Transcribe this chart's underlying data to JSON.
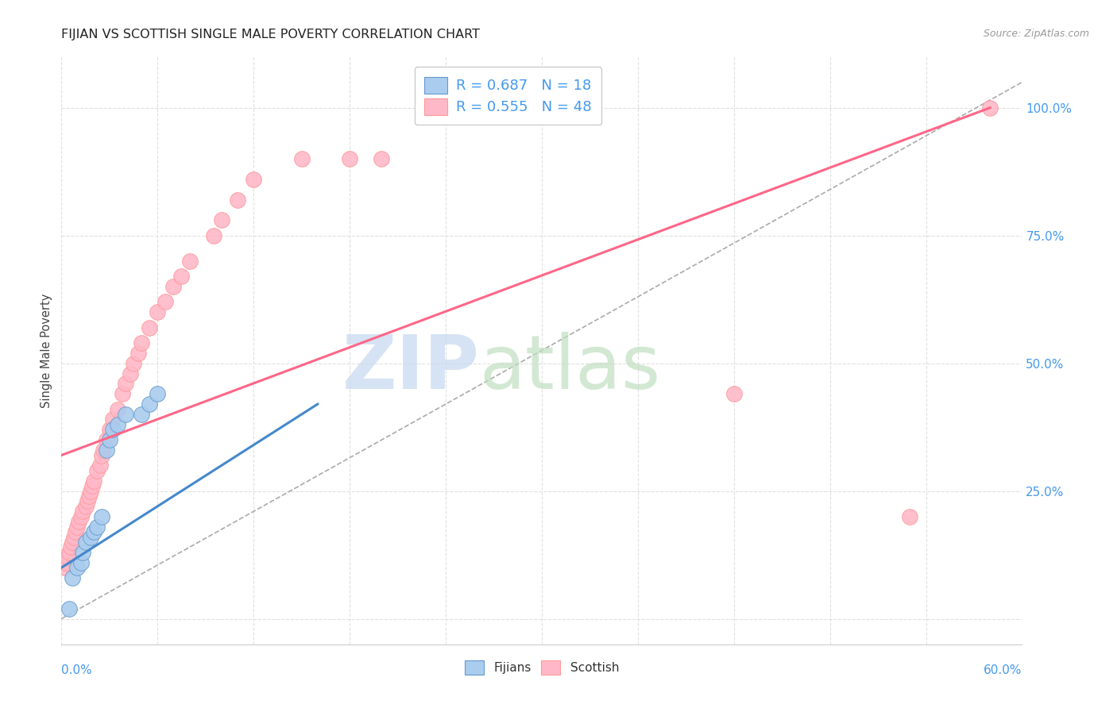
{
  "title": "FIJIAN VS SCOTTISH SINGLE MALE POVERTY CORRELATION CHART",
  "source": "Source: ZipAtlas.com",
  "ylabel": "Single Male Poverty",
  "yticks": [
    0.0,
    0.25,
    0.5,
    0.75,
    1.0
  ],
  "ytick_labels": [
    "",
    "25.0%",
    "50.0%",
    "75.0%",
    "100.0%"
  ],
  "xlim": [
    0.0,
    0.6
  ],
  "ylim": [
    -0.05,
    1.1
  ],
  "fijian_color": "#AACCEE",
  "fijian_edge": "#6699CC",
  "scottish_color": "#FFB8C8",
  "scottish_edge": "#FF9999",
  "fijian_line_color": "#4488CC",
  "scottish_line_color": "#FF6688",
  "dash_line_color": "#AAAAAA",
  "fijian_R": 0.687,
  "fijian_N": 18,
  "scottish_R": 0.555,
  "scottish_N": 48,
  "legend_color": "#4499EE",
  "watermark_zip_color": "#C5D8F0",
  "watermark_atlas_color": "#C0DFC0",
  "background": "#FFFFFF",
  "grid_color": "#E0E0E0",
  "fijian_x": [
    0.005,
    0.007,
    0.01,
    0.012,
    0.013,
    0.015,
    0.018,
    0.02,
    0.022,
    0.025,
    0.028,
    0.03,
    0.032,
    0.035,
    0.04,
    0.05,
    0.055,
    0.06
  ],
  "fijian_y": [
    0.02,
    0.08,
    0.1,
    0.11,
    0.13,
    0.15,
    0.16,
    0.17,
    0.18,
    0.2,
    0.33,
    0.35,
    0.37,
    0.38,
    0.4,
    0.4,
    0.42,
    0.44
  ],
  "scottish_x": [
    0.002,
    0.003,
    0.004,
    0.005,
    0.006,
    0.007,
    0.008,
    0.009,
    0.01,
    0.011,
    0.012,
    0.013,
    0.015,
    0.016,
    0.017,
    0.018,
    0.019,
    0.02,
    0.022,
    0.024,
    0.025,
    0.026,
    0.028,
    0.03,
    0.032,
    0.035,
    0.038,
    0.04,
    0.043,
    0.045,
    0.048,
    0.05,
    0.055,
    0.06,
    0.065,
    0.07,
    0.075,
    0.08,
    0.095,
    0.1,
    0.11,
    0.12,
    0.15,
    0.18,
    0.2,
    0.42,
    0.53,
    0.58
  ],
  "scottish_y": [
    0.1,
    0.11,
    0.12,
    0.13,
    0.14,
    0.15,
    0.16,
    0.17,
    0.18,
    0.19,
    0.2,
    0.21,
    0.22,
    0.23,
    0.24,
    0.25,
    0.26,
    0.27,
    0.29,
    0.3,
    0.32,
    0.33,
    0.35,
    0.37,
    0.39,
    0.41,
    0.44,
    0.46,
    0.48,
    0.5,
    0.52,
    0.54,
    0.57,
    0.6,
    0.62,
    0.65,
    0.67,
    0.7,
    0.75,
    0.78,
    0.82,
    0.86,
    0.9,
    0.9,
    0.9,
    0.44,
    0.2,
    1.0
  ],
  "fijian_line_x0": 0.0,
  "fijian_line_y0": 0.1,
  "fijian_line_x1": 0.16,
  "fijian_line_y1": 0.42,
  "scottish_line_x0": 0.0,
  "scottish_line_y0": 0.32,
  "scottish_line_x1": 0.58,
  "scottish_line_y1": 1.0,
  "dash_line_x0": 0.0,
  "dash_line_y0": 0.0,
  "dash_line_x1": 0.6,
  "dash_line_y1": 1.05
}
